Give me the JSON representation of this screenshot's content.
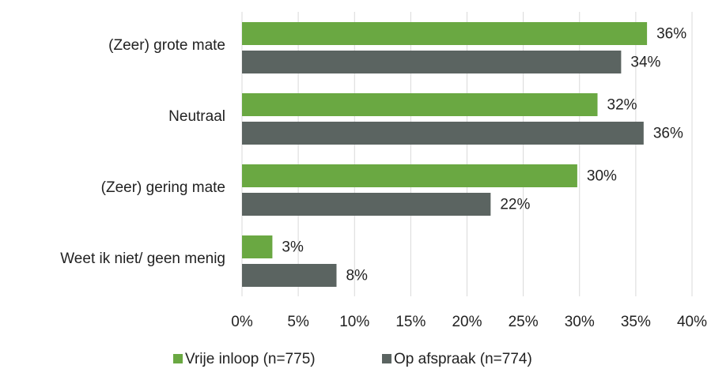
{
  "chart_data": {
    "type": "hbar",
    "categories": [
      "(Zeer) grote mate",
      "Neutraal",
      "(Zeer) gering mate",
      "Weet ik niet/ geen menig"
    ],
    "series": [
      {
        "name": "Vrije inloop (n=775)",
        "color": "#6aa842",
        "values": [
          36.0,
          31.6,
          29.8,
          2.7
        ],
        "value_labels": [
          "36%",
          "32%",
          "30%",
          "3%"
        ]
      },
      {
        "name": "Op afspraak (n=774)",
        "color": "#5b6461",
        "values": [
          33.7,
          35.7,
          22.1,
          8.4
        ],
        "value_labels": [
          "34%",
          "36%",
          "22%",
          "8%"
        ]
      }
    ],
    "xlim": [
      0,
      40
    ],
    "xticks": [
      {
        "value": 0,
        "label": "0%"
      },
      {
        "value": 5,
        "label": "5%"
      },
      {
        "value": 10,
        "label": "10%"
      },
      {
        "value": 15,
        "label": "15%"
      },
      {
        "value": 20,
        "label": "20%"
      },
      {
        "value": 25,
        "label": "25%"
      },
      {
        "value": 30,
        "label": "30%"
      },
      {
        "value": 35,
        "label": "35%"
      },
      {
        "value": 40,
        "label": "40%"
      }
    ],
    "grid": true,
    "legend": "bottom"
  }
}
